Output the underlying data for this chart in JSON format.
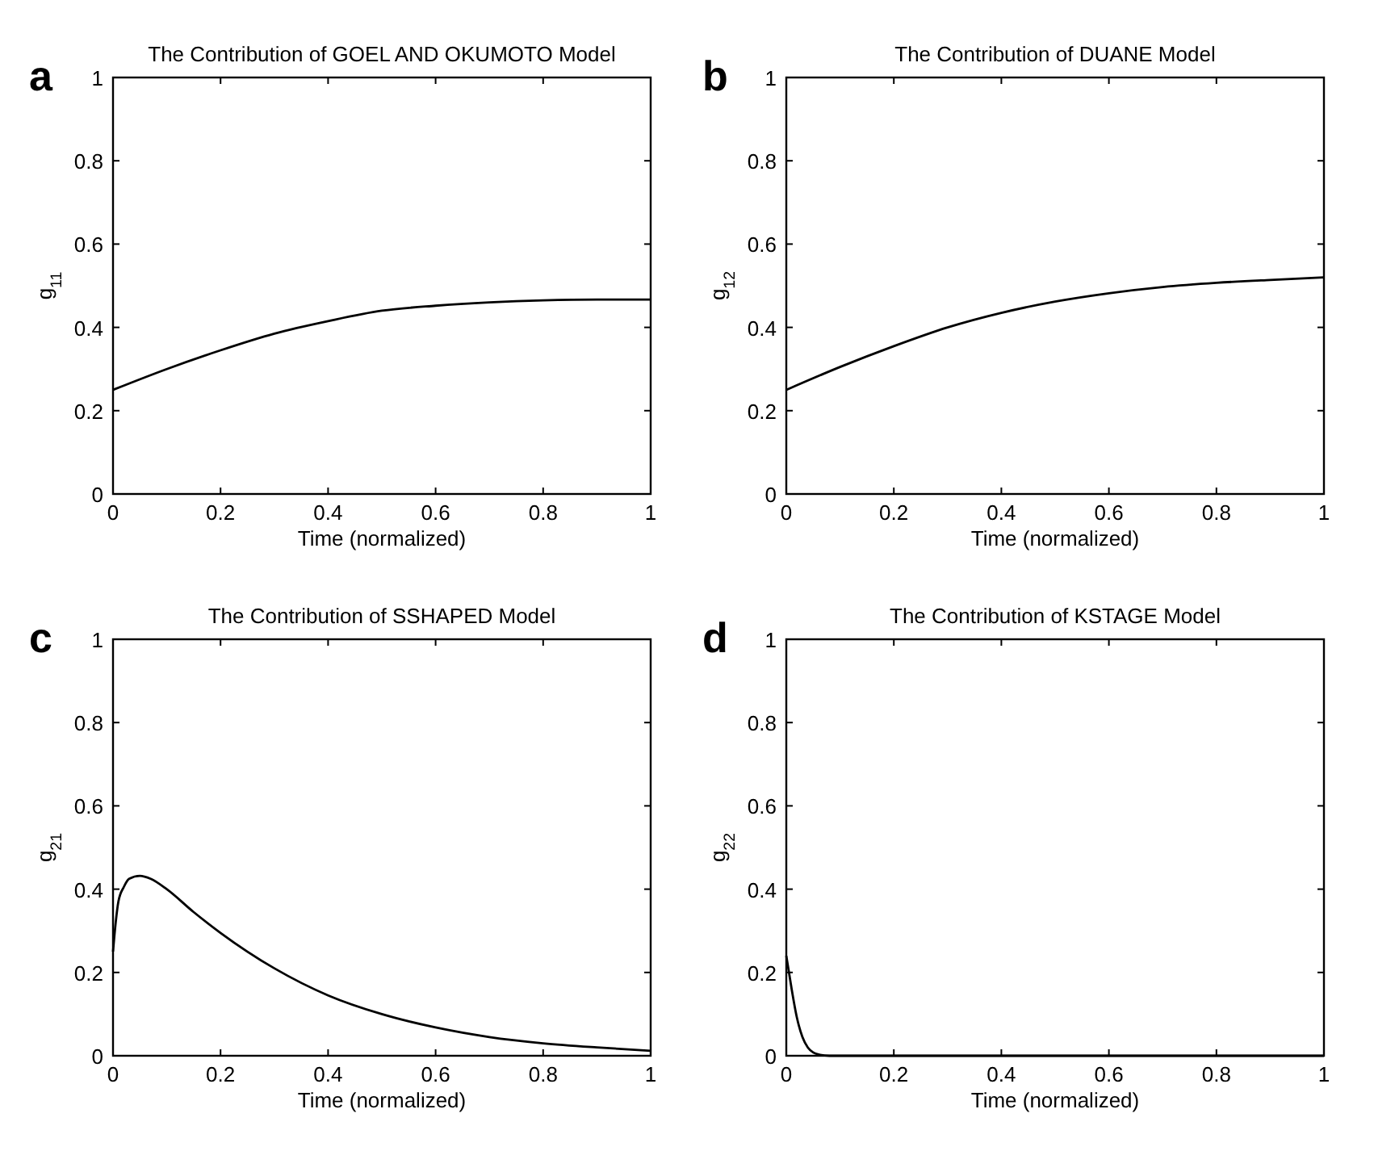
{
  "chart_data": [
    {
      "type": "line",
      "title": "The Contribution of GOEL AND OKUMOTO Model",
      "annotations": [
        "a"
      ],
      "xlabel": "Time (normalized)",
      "ylabel": "g$_{11}$",
      "xlim": [
        0,
        1
      ],
      "ylim": [
        0,
        1
      ],
      "xticks": [
        0,
        0.2,
        0.4,
        0.6,
        0.8,
        1
      ],
      "yticks": [
        0,
        0.2,
        0.4,
        0.6,
        0.8,
        1
      ],
      "grid": false,
      "marker": "none",
      "line_style": "solid",
      "series": [
        {
          "color": "#000000",
          "x": [
            0,
            0.1,
            0.2,
            0.3,
            0.4,
            0.5,
            0.6,
            0.7,
            0.8,
            0.9,
            1
          ],
          "values": [
            0.25,
            0.3,
            0.345,
            0.385,
            0.415,
            0.44,
            0.452,
            0.46,
            0.465,
            0.467,
            0.467
          ]
        }
      ]
    },
    {
      "type": "line",
      "title": "The Contribution of DUANE Model",
      "annotations": [
        "b"
      ],
      "xlabel": "Time (normalized)",
      "ylabel": "g$_{12}$",
      "xlim": [
        0,
        1
      ],
      "ylim": [
        0,
        1
      ],
      "xticks": [
        0,
        0.2,
        0.4,
        0.6,
        0.8,
        1
      ],
      "yticks": [
        0,
        0.2,
        0.4,
        0.6,
        0.8,
        1
      ],
      "grid": false,
      "marker": "none",
      "line_style": "solid",
      "series": [
        {
          "color": "#000000",
          "x": [
            0,
            0.1,
            0.2,
            0.3,
            0.4,
            0.5,
            0.6,
            0.7,
            0.8,
            0.9,
            1
          ],
          "values": [
            0.25,
            0.305,
            0.355,
            0.4,
            0.435,
            0.462,
            0.482,
            0.497,
            0.507,
            0.514,
            0.52
          ]
        }
      ]
    },
    {
      "type": "line",
      "title": "The Contribution of SSHAPED Model",
      "annotations": [
        "c"
      ],
      "xlabel": "Time (normalized)",
      "ylabel": "g$_{21}$",
      "xlim": [
        0,
        1
      ],
      "ylim": [
        0,
        1
      ],
      "xticks": [
        0,
        0.2,
        0.4,
        0.6,
        0.8,
        1
      ],
      "yticks": [
        0,
        0.2,
        0.4,
        0.6,
        0.8,
        1
      ],
      "grid": false,
      "marker": "none",
      "line_style": "solid",
      "series": [
        {
          "color": "#000000",
          "x": [
            0,
            0.005,
            0.01,
            0.02,
            0.03,
            0.05,
            0.07,
            0.1,
            0.15,
            0.2,
            0.3,
            0.4,
            0.5,
            0.6,
            0.7,
            0.8,
            0.9,
            1
          ],
          "values": [
            0.25,
            0.32,
            0.37,
            0.405,
            0.425,
            0.432,
            0.425,
            0.4,
            0.345,
            0.295,
            0.21,
            0.145,
            0.1,
            0.068,
            0.045,
            0.03,
            0.02,
            0.012
          ]
        }
      ]
    },
    {
      "type": "line",
      "title": "The Contribution of KSTAGE Model",
      "annotations": [
        "d"
      ],
      "xlabel": "Time (normalized)",
      "ylabel": "g$_{22}$",
      "xlim": [
        0,
        1
      ],
      "ylim": [
        0,
        1
      ],
      "xticks": [
        0,
        0.2,
        0.4,
        0.6,
        0.8,
        1
      ],
      "yticks": [
        0,
        0.2,
        0.4,
        0.6,
        0.8,
        1
      ],
      "grid": false,
      "marker": "none",
      "line_style": "solid",
      "series": [
        {
          "color": "#000000",
          "x": [
            0,
            0.005,
            0.01,
            0.02,
            0.03,
            0.04,
            0.05,
            0.06,
            0.08,
            0.1,
            1
          ],
          "values": [
            0.24,
            0.2,
            0.16,
            0.09,
            0.045,
            0.02,
            0.008,
            0.003,
            0,
            0,
            0
          ]
        }
      ]
    }
  ]
}
